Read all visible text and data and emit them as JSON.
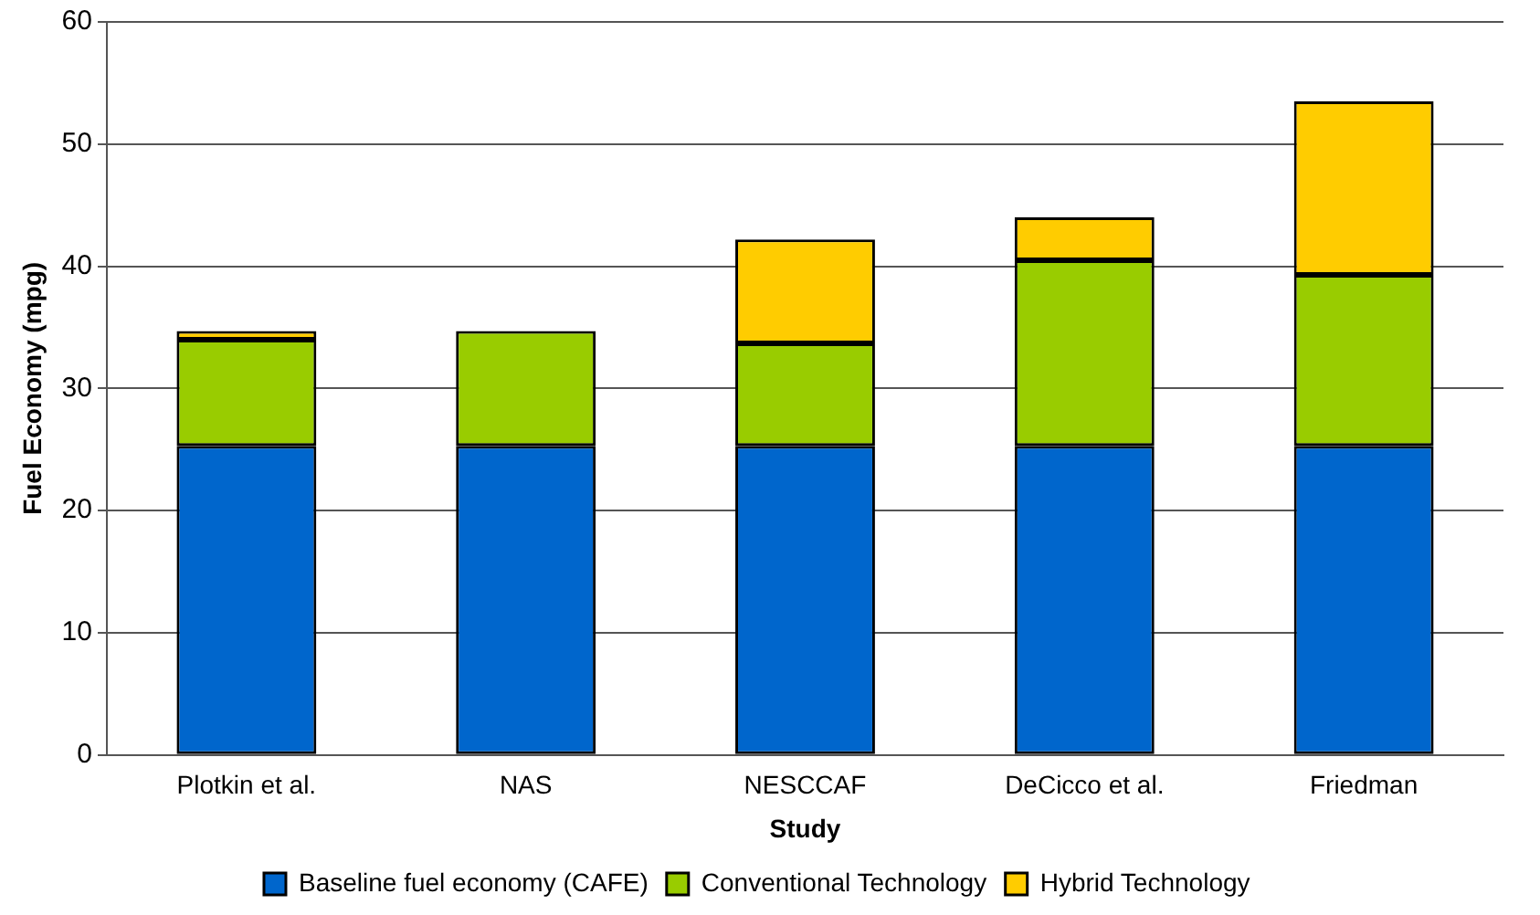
{
  "chart_data": {
    "type": "bar",
    "stacked": true,
    "xlabel": "Study",
    "ylabel": "Fuel Economy (mpg)",
    "categories": [
      "Plotkin et al.",
      "NAS",
      "NESCCAF",
      "DeCicco et al.",
      "Friedman"
    ],
    "series": [
      {
        "name": "Baseline fuel economy (CAFE)",
        "color": "#0066cc",
        "values": [
          25.3,
          25.3,
          25.3,
          25.3,
          25.3
        ]
      },
      {
        "name": "Conventional Technology",
        "color": "#99cc00",
        "values": [
          8.7,
          9.4,
          8.4,
          15.2,
          14.0
        ]
      },
      {
        "name": "Hybrid Technology",
        "color": "#ffcc00",
        "values": [
          0.7,
          null,
          8.5,
          3.5,
          14.2
        ]
      }
    ],
    "ylim": [
      0,
      60
    ],
    "yticks": [
      0,
      10,
      20,
      30,
      40,
      50,
      60
    ],
    "grid": "y",
    "legend": "bottom"
  }
}
